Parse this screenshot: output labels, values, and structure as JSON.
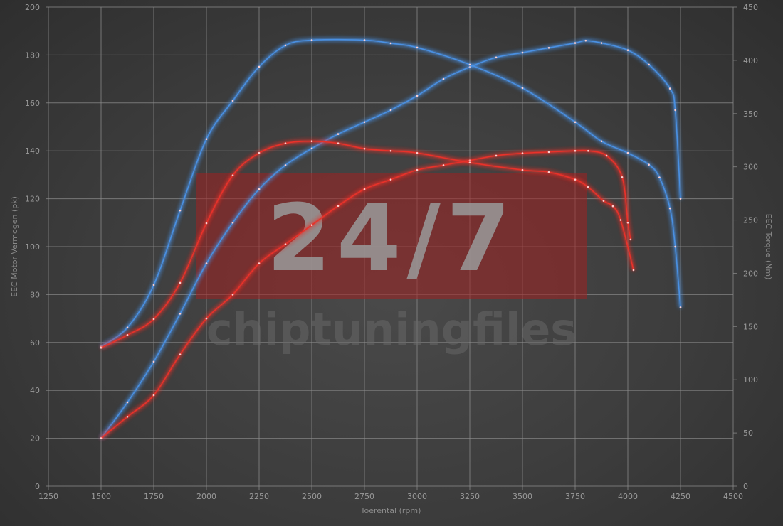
{
  "chart_data": {
    "type": "line",
    "title": "",
    "xlabel": "Toerental (rpm)",
    "ylabel": "EEC Motor Vermogen (pk)",
    "y2label": "EEC Torque (Nm)",
    "xlim": [
      1250,
      4500
    ],
    "ylim": [
      0,
      200
    ],
    "y2lim": [
      0,
      450
    ],
    "xticks": [
      1250,
      1500,
      1750,
      2000,
      2250,
      2500,
      2750,
      3000,
      3250,
      3500,
      3750,
      4000,
      4250,
      4500
    ],
    "yticks": [
      0,
      20,
      40,
      60,
      80,
      100,
      120,
      140,
      160,
      180,
      200
    ],
    "y2ticks": [
      0,
      50,
      100,
      150,
      200,
      250,
      300,
      350,
      400,
      450
    ],
    "grid": true,
    "watermark": {
      "big": "24/7",
      "small": "chiptuningfiles"
    },
    "series": [
      {
        "axis": "left",
        "color": "#4a90e2",
        "x": [
          1500,
          1625,
          1750,
          1875,
          2000,
          2125,
          2250,
          2375,
          2500,
          2625,
          2750,
          2875,
          3000,
          3125,
          3250,
          3375,
          3500,
          3625,
          3750,
          3800,
          3875,
          4000,
          4100,
          4200,
          4225,
          4250
        ],
        "y": [
          20,
          35,
          52,
          72,
          93,
          110,
          124,
          134,
          141,
          147,
          152,
          157,
          163,
          170,
          175,
          179,
          181,
          183,
          185,
          186,
          185,
          182,
          176,
          166,
          157,
          120
        ]
      },
      {
        "axis": "right",
        "color": "#4a90e2",
        "x": [
          1500,
          1625,
          1750,
          1875,
          2000,
          2125,
          2250,
          2375,
          2500,
          2750,
          2875,
          3000,
          3250,
          3500,
          3750,
          3875,
          4000,
          4100,
          4150,
          4200,
          4225,
          4250
        ],
        "y": [
          131,
          149,
          189,
          259,
          326,
          362,
          394,
          414,
          419,
          419,
          416,
          412,
          396,
          374,
          342,
          324,
          313,
          302,
          290,
          261,
          225,
          168
        ]
      },
      {
        "axis": "left",
        "color": "#e8322a",
        "x": [
          1500,
          1625,
          1750,
          1875,
          2000,
          2125,
          2250,
          2375,
          2500,
          2625,
          2750,
          2875,
          3000,
          3125,
          3250,
          3375,
          3500,
          3625,
          3750,
          3812,
          3899,
          3973,
          4000,
          4013
        ],
        "y": [
          20,
          29,
          38,
          55,
          70,
          80,
          93,
          101,
          109,
          117,
          124,
          128,
          132,
          134,
          136,
          138,
          139,
          139.5,
          140,
          140,
          138,
          129,
          110,
          103
        ]
      },
      {
        "axis": "right",
        "color": "#e8322a",
        "x": [
          1500,
          1625,
          1750,
          1875,
          2000,
          2125,
          2250,
          2375,
          2500,
          2625,
          2750,
          2875,
          3000,
          3250,
          3500,
          3625,
          3750,
          3811,
          3885,
          3929,
          3966,
          4027
        ],
        "y": [
          130,
          142,
          157,
          191,
          247,
          292,
          313,
          322,
          324,
          322,
          317,
          315,
          313,
          304,
          297,
          295,
          288,
          281,
          268,
          263,
          250,
          203
        ]
      }
    ]
  }
}
